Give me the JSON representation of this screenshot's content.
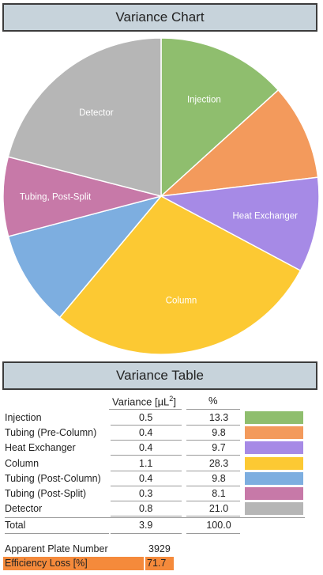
{
  "chart_header": {
    "title": "Variance Chart"
  },
  "table_header": {
    "title": "Variance Table"
  },
  "chart_data": {
    "type": "pie",
    "slices": [
      {
        "label": "Injection",
        "value": 13.3,
        "color": "#8fbe6e",
        "show_label": true
      },
      {
        "label": "Tubing (Pre-Column)",
        "value": 9.8,
        "color": "#f39a5c",
        "show_label": false
      },
      {
        "label": "Heat Exchanger",
        "value": 9.7,
        "color": "#a68ae6",
        "show_label": true
      },
      {
        "label": "Column",
        "value": 28.3,
        "color": "#fcc933",
        "show_label": true
      },
      {
        "label": "Tubing (Post-Column)",
        "value": 9.8,
        "color": "#7daee0",
        "show_label": false
      },
      {
        "label": "Tubing, Post-Split",
        "value": 8.1,
        "color": "#c779a8",
        "show_label": true
      },
      {
        "label": "Detector",
        "value": 21.0,
        "color": "#b6b6b6",
        "show_label": true
      }
    ]
  },
  "table": {
    "columns": {
      "variance_prefix": "Variance [µL",
      "variance_sup": "2",
      "variance_suffix": "]",
      "percent": "%"
    },
    "rows": [
      {
        "name": "Injection",
        "variance": "0.5",
        "percent": "13.3",
        "color": "#8fbe6e"
      },
      {
        "name": "Tubing (Pre-Column)",
        "variance": "0.4",
        "percent": "9.8",
        "color": "#f39a5c"
      },
      {
        "name": "Heat Exchanger",
        "variance": "0.4",
        "percent": "9.7",
        "color": "#a68ae6"
      },
      {
        "name": "Column",
        "variance": "1.1",
        "percent": "28.3",
        "color": "#fcc933"
      },
      {
        "name": "Tubing (Post-Column)",
        "variance": "0.4",
        "percent": "9.8",
        "color": "#7daee0"
      },
      {
        "name": "Tubing (Post-Split)",
        "variance": "0.3",
        "percent": "8.1",
        "color": "#c779a8"
      },
      {
        "name": "Detector",
        "variance": "0.8",
        "percent": "21.0",
        "color": "#b6b6b6"
      }
    ],
    "total": {
      "name": "Total",
      "variance": "3.9",
      "percent": "100.0"
    }
  },
  "stats": {
    "plate_number_label": "Apparent Plate Number",
    "plate_number_value": "3929",
    "efficiency_loss_label": "Efficiency Loss [%]",
    "efficiency_loss_value": "71.7",
    "efficiency_loss_color": "#f58a3b"
  }
}
